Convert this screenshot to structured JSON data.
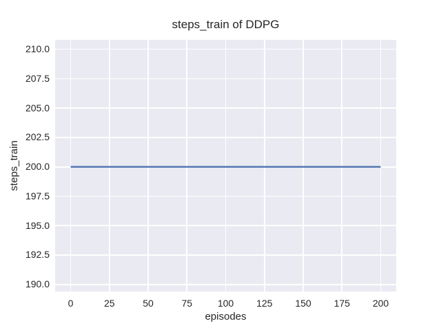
{
  "figure": {
    "title": "steps_train of DDPG",
    "xlabel": "episodes",
    "ylabel": "steps_train"
  },
  "colors": {
    "figure_background": "#ffffff",
    "axes_background": "#eaeaf2",
    "grid": "#ffffff",
    "text": "#262626",
    "line": "#4c72b0"
  },
  "chart_data": {
    "type": "line",
    "title": "steps_train of DDPG",
    "xlabel": "episodes",
    "ylabel": "steps_train",
    "grid": true,
    "legend": false,
    "xlim": [
      -10,
      210
    ],
    "ylim": [
      189.4,
      210.8
    ],
    "x_ticks": [
      0,
      25,
      50,
      75,
      100,
      125,
      150,
      175,
      200
    ],
    "x_tick_labels": [
      "0",
      "25",
      "50",
      "75",
      "100",
      "125",
      "150",
      "175",
      "200"
    ],
    "y_ticks": [
      190.0,
      192.5,
      195.0,
      197.5,
      200.0,
      202.5,
      205.0,
      207.5,
      210.0
    ],
    "y_tick_labels": [
      "190.0",
      "192.5",
      "195.0",
      "197.5",
      "200.0",
      "202.5",
      "205.0",
      "207.5",
      "210.0"
    ],
    "series": [
      {
        "name": "steps_train",
        "color": "#4c72b0",
        "points": [
          [
            0,
            200
          ],
          [
            200,
            200
          ]
        ]
      }
    ]
  }
}
